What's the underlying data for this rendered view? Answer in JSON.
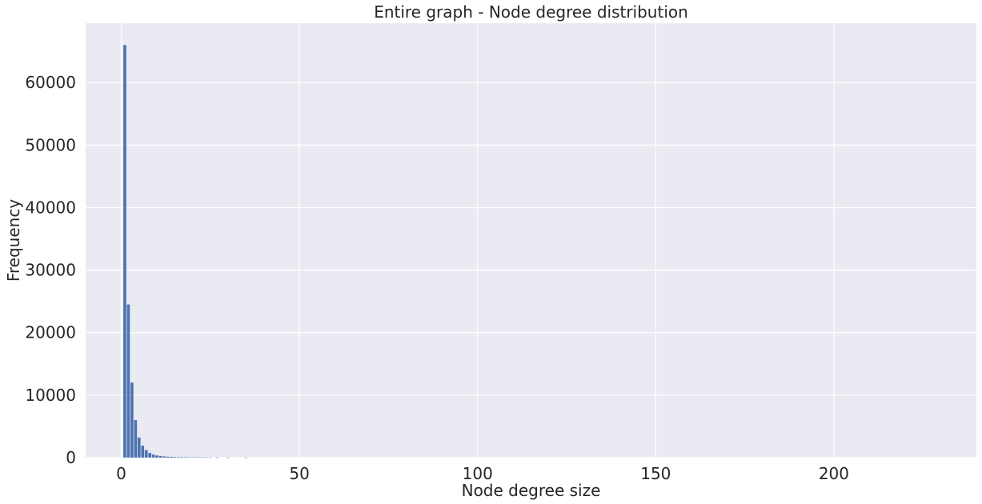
{
  "chart_data": {
    "type": "bar",
    "title": "Entire graph - Node degree distribution",
    "xlabel": "Node degree size",
    "ylabel": "Frequency",
    "xlim": [
      -10,
      240
    ],
    "ylim": [
      0,
      69500
    ],
    "xticks": [
      0,
      50,
      100,
      150,
      200
    ],
    "yticks": [
      0,
      10000,
      20000,
      30000,
      40000,
      50000,
      60000
    ],
    "xtick_labels": [
      "0",
      "50",
      "100",
      "150",
      "200"
    ],
    "ytick_labels": [
      "0",
      "10000",
      "20000",
      "30000",
      "40000",
      "50000",
      "60000"
    ],
    "grid": true,
    "bar_color": "#4c72b0",
    "background_color": "#eaeaf2",
    "x": [
      1,
      2,
      3,
      4,
      5,
      6,
      7,
      8,
      9,
      10,
      11,
      12,
      13,
      14,
      15,
      16,
      17,
      18,
      19,
      20,
      21,
      22,
      23,
      24,
      25,
      27,
      30,
      35
    ],
    "values": [
      66000,
      24500,
      12000,
      6000,
      3200,
      1900,
      1200,
      750,
      500,
      350,
      270,
      200,
      160,
      130,
      110,
      95,
      80,
      70,
      60,
      55,
      50,
      45,
      40,
      35,
      30,
      25,
      20,
      15
    ]
  }
}
